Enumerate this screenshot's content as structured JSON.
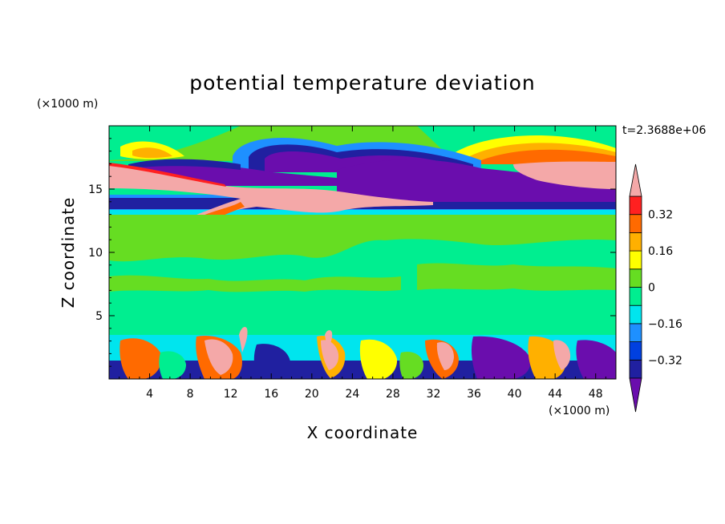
{
  "chart_data": {
    "type": "heatmap",
    "title": "potential temperature deviation",
    "xlabel": "X coordinate",
    "ylabel": "Z coordinate",
    "x_unit": "(×1000 m)",
    "y_unit": "(×1000 m)",
    "time_label": "t=2.3688e+06",
    "xlim": [
      0,
      50
    ],
    "ylim": [
      0,
      20
    ],
    "x_ticks": [
      4,
      8,
      12,
      16,
      20,
      24,
      28,
      32,
      36,
      40,
      44,
      48
    ],
    "y_ticks": [
      5,
      10,
      15
    ],
    "colorbar": {
      "levels": [
        -0.4,
        -0.32,
        -0.24,
        -0.16,
        -0.08,
        0,
        0.08,
        0.16,
        0.24,
        0.32,
        0.4
      ],
      "tick_labels": [
        "0.32",
        "0.16",
        "0",
        "−0.16",
        "−0.32"
      ],
      "colors": [
        "#6a0dad",
        "#2020a0",
        "#0040e0",
        "#1e90ff",
        "#00e5ee",
        "#00ee90",
        "#66dd22",
        "#ffff00",
        "#ffb000",
        "#ff6a00",
        "#ff2020",
        "#f4a8a8"
      ],
      "extend": "both"
    },
    "layers": [
      {
        "z": [
          0,
          3.5
        ],
        "description_value": "mixed"
      },
      {
        "z": [
          3.5,
          13
        ],
        "value": 0.02
      },
      {
        "z": [
          13,
          14.6
        ],
        "value": -0.34
      },
      {
        "z": [
          14.6,
          17
        ],
        "value": 0.4
      },
      {
        "z": [
          17,
          20
        ],
        "value": 0.02
      }
    ]
  }
}
